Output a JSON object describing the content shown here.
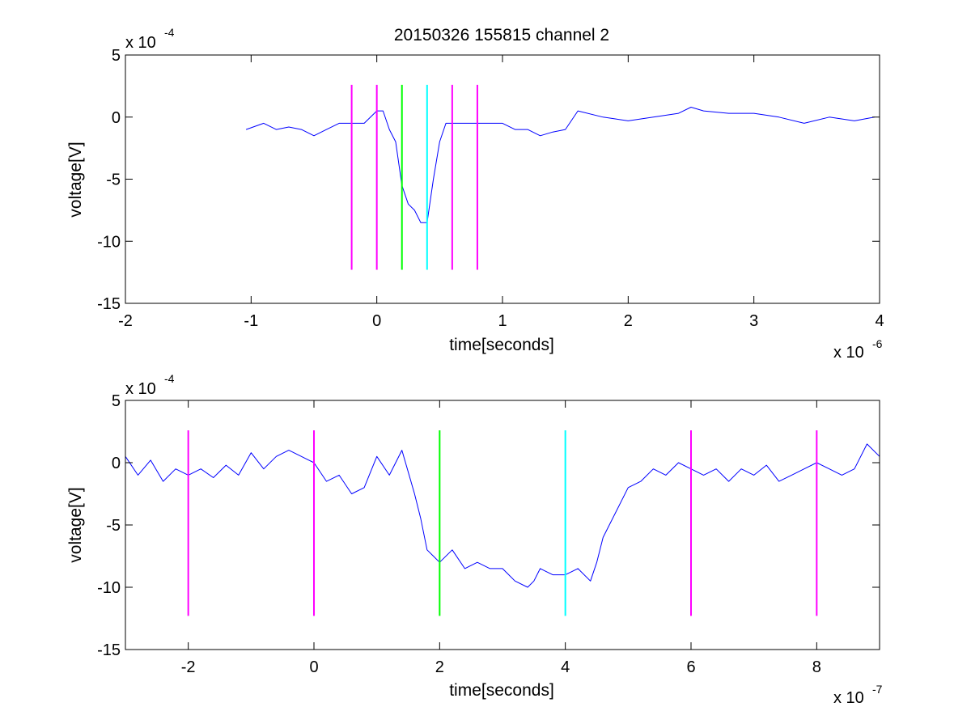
{
  "figure_title": "20150326 155815 channel 2",
  "colors": {
    "signal": "#0000ff",
    "magenta": "#ff00ff",
    "green": "#00ff00",
    "cyan": "#00ffff",
    "axes": "#000000",
    "background": "#ffffff"
  },
  "chart_data": [
    {
      "type": "line",
      "title": "20150326 155815 channel 2",
      "xlabel": "time[seconds]",
      "ylabel": "voltage[V]",
      "x_multiplier": "x 10",
      "x_exponent": "-6",
      "y_multiplier": "x 10",
      "y_exponent": "-4",
      "xlim": [
        -2,
        4
      ],
      "ylim": [
        -15,
        5
      ],
      "xticks": [
        -2,
        -1,
        0,
        1,
        2,
        3,
        4
      ],
      "yticks": [
        5,
        0,
        -5,
        -10,
        -15
      ],
      "grid": false,
      "series": [
        {
          "color": "#0000ff",
          "x": [
            -1.04,
            -0.9,
            -0.8,
            -0.7,
            -0.6,
            -0.5,
            -0.4,
            -0.3,
            -0.2,
            -0.1,
            0.0,
            0.05,
            0.1,
            0.15,
            0.2,
            0.25,
            0.3,
            0.35,
            0.4,
            0.45,
            0.5,
            0.55,
            0.6,
            0.7,
            0.8,
            0.9,
            1.0,
            1.1,
            1.2,
            1.3,
            1.4,
            1.5,
            1.6,
            1.8,
            2.0,
            2.2,
            2.4,
            2.5,
            2.6,
            2.8,
            3.0,
            3.2,
            3.4,
            3.6,
            3.8,
            3.96
          ],
          "y": [
            -1,
            -0.5,
            -1,
            -0.8,
            -1,
            -1.5,
            -1,
            -0.5,
            -0.5,
            -0.5,
            0.5,
            0.5,
            -1,
            -2,
            -5.5,
            -7,
            -7.5,
            -8.5,
            -8.5,
            -5,
            -2,
            -0.5,
            -0.5,
            -0.5,
            -0.5,
            -0.5,
            -0.5,
            -1,
            -1,
            -1.5,
            -1.2,
            -1,
            0.5,
            0,
            -0.3,
            0,
            0.3,
            0.8,
            0.5,
            0.3,
            0.3,
            0,
            -0.5,
            0,
            -0.3,
            0
          ]
        }
      ],
      "vertical_markers": [
        {
          "x": -0.2,
          "color": "#ff00ff",
          "y_range": [
            -12.3,
            2.6
          ]
        },
        {
          "x": 0.0,
          "color": "#ff00ff",
          "y_range": [
            -12.3,
            2.6
          ]
        },
        {
          "x": 0.2,
          "color": "#00ff00",
          "y_range": [
            -12.3,
            2.6
          ]
        },
        {
          "x": 0.4,
          "color": "#00ffff",
          "y_range": [
            -12.3,
            2.6
          ]
        },
        {
          "x": 0.6,
          "color": "#ff00ff",
          "y_range": [
            -12.3,
            2.6
          ]
        },
        {
          "x": 0.8,
          "color": "#ff00ff",
          "y_range": [
            -12.3,
            2.6
          ]
        }
      ]
    },
    {
      "type": "line",
      "xlabel": "time[seconds]",
      "ylabel": "voltage[V]",
      "x_multiplier": "x 10",
      "x_exponent": "-7",
      "y_multiplier": "x 10",
      "y_exponent": "-4",
      "xlim": [
        -3,
        9
      ],
      "ylim": [
        -15,
        5
      ],
      "xticks": [
        -2,
        0,
        2,
        4,
        6,
        8
      ],
      "yticks": [
        5,
        0,
        -5,
        -10,
        -15
      ],
      "grid": false,
      "series": [
        {
          "color": "#0000ff",
          "x": [
            -3.0,
            -2.8,
            -2.6,
            -2.4,
            -2.2,
            -2.0,
            -1.8,
            -1.6,
            -1.4,
            -1.2,
            -1.0,
            -0.8,
            -0.6,
            -0.4,
            -0.2,
            0.0,
            0.2,
            0.4,
            0.6,
            0.8,
            1.0,
            1.2,
            1.4,
            1.6,
            1.7,
            1.8,
            1.9,
            2.0,
            2.2,
            2.4,
            2.6,
            2.8,
            3.0,
            3.2,
            3.4,
            3.5,
            3.6,
            3.8,
            4.0,
            4.2,
            4.4,
            4.5,
            4.6,
            4.8,
            5.0,
            5.2,
            5.4,
            5.6,
            5.8,
            6.0,
            6.2,
            6.4,
            6.6,
            6.8,
            7.0,
            7.2,
            7.4,
            7.6,
            7.8,
            8.0,
            8.2,
            8.4,
            8.6,
            8.8,
            9.0
          ],
          "y": [
            0.5,
            -1,
            0.2,
            -1.5,
            -0.5,
            -1,
            -0.5,
            -1.2,
            -0.2,
            -1,
            0.8,
            -0.5,
            0.5,
            1,
            0.5,
            0,
            -1.5,
            -1,
            -2.5,
            -2,
            0.5,
            -1,
            1,
            -2.5,
            -4.5,
            -7,
            -7.5,
            -8,
            -7,
            -8.5,
            -8,
            -8.5,
            -8.5,
            -9.5,
            -10,
            -9.5,
            -8.5,
            -9,
            -9,
            -8.5,
            -9.5,
            -8,
            -6,
            -4,
            -2,
            -1.5,
            -0.5,
            -1,
            0,
            -0.5,
            -1,
            -0.5,
            -1.5,
            -0.5,
            -1,
            -0.2,
            -1.5,
            -1,
            -0.5,
            0,
            -0.5,
            -1,
            -0.5,
            1.5,
            0.5
          ]
        }
      ],
      "vertical_markers": [
        {
          "x": -2,
          "color": "#ff00ff",
          "y_range": [
            -12.3,
            2.6
          ]
        },
        {
          "x": 0,
          "color": "#ff00ff",
          "y_range": [
            -12.3,
            2.6
          ]
        },
        {
          "x": 2,
          "color": "#00ff00",
          "y_range": [
            -12.3,
            2.6
          ]
        },
        {
          "x": 4,
          "color": "#00ffff",
          "y_range": [
            -12.3,
            2.6
          ]
        },
        {
          "x": 6,
          "color": "#ff00ff",
          "y_range": [
            -12.3,
            2.6
          ]
        },
        {
          "x": 8,
          "color": "#ff00ff",
          "y_range": [
            -12.3,
            2.6
          ]
        }
      ]
    }
  ]
}
